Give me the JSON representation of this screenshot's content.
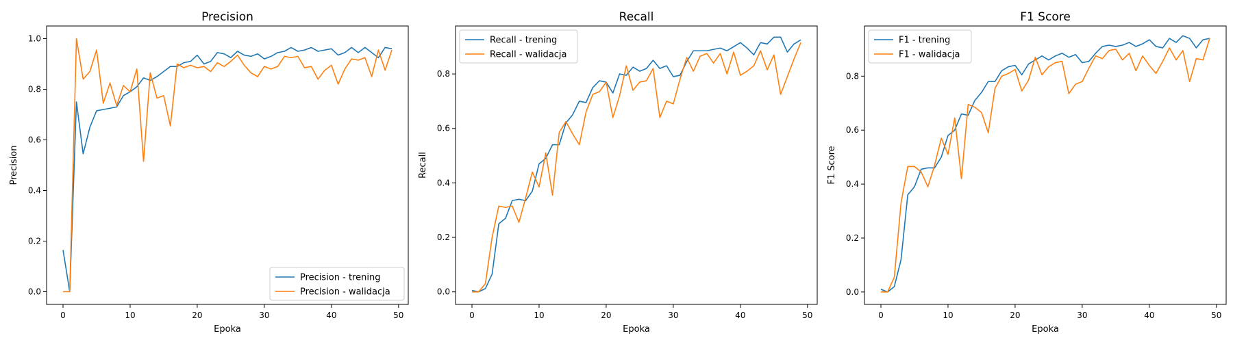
{
  "colors": {
    "trening": "#1f77b4",
    "walidacja": "#ff7f0e"
  },
  "chart_data": [
    {
      "type": "line",
      "title": "Precision",
      "xlabel": "Epoka",
      "ylabel": "Precision",
      "xlim": [
        -2.45,
        51.45
      ],
      "ylim": [
        -0.05,
        1.05
      ],
      "xticks": [
        0,
        10,
        20,
        30,
        40,
        50
      ],
      "yticks": [
        0.0,
        0.2,
        0.4,
        0.6,
        0.8,
        1.0
      ],
      "ytick_labels": [
        "0.0",
        "0.2",
        "0.4",
        "0.6",
        "0.8",
        "1.0"
      ],
      "legend_loc": "lower-right",
      "series": [
        {
          "name": "Precision - trening",
          "color": "#1f77b4",
          "values": [
            0.165,
            0.0,
            0.75,
            0.545,
            0.65,
            0.715,
            0.72,
            0.725,
            0.73,
            0.775,
            0.79,
            0.81,
            0.845,
            0.835,
            0.85,
            0.87,
            0.89,
            0.89,
            0.905,
            0.91,
            0.935,
            0.9,
            0.91,
            0.945,
            0.94,
            0.925,
            0.95,
            0.935,
            0.93,
            0.94,
            0.92,
            0.93,
            0.945,
            0.95,
            0.965,
            0.95,
            0.955,
            0.965,
            0.95,
            0.955,
            0.96,
            0.935,
            0.945,
            0.965,
            0.945,
            0.965,
            0.945,
            0.925,
            0.965,
            0.96
          ]
        },
        {
          "name": "Precision - walidacja",
          "color": "#ff7f0e",
          "values": [
            0.0,
            0.0,
            1.0,
            0.84,
            0.87,
            0.955,
            0.745,
            0.825,
            0.735,
            0.815,
            0.79,
            0.88,
            0.515,
            0.865,
            0.765,
            0.775,
            0.655,
            0.9,
            0.885,
            0.895,
            0.885,
            0.89,
            0.87,
            0.905,
            0.89,
            0.91,
            0.935,
            0.895,
            0.865,
            0.85,
            0.89,
            0.88,
            0.89,
            0.93,
            0.925,
            0.93,
            0.885,
            0.89,
            0.84,
            0.875,
            0.895,
            0.82,
            0.88,
            0.92,
            0.915,
            0.925,
            0.85,
            0.955,
            0.875,
            0.955
          ]
        }
      ]
    },
    {
      "type": "line",
      "title": "Recall",
      "xlabel": "Epoka",
      "ylabel": "Recall",
      "xlim": [
        -2.45,
        51.45
      ],
      "ylim": [
        -0.046,
        0.976
      ],
      "xticks": [
        0,
        10,
        20,
        30,
        40,
        50
      ],
      "yticks": [
        0.0,
        0.2,
        0.4,
        0.6,
        0.8
      ],
      "ytick_labels": [
        "0.0",
        "0.2",
        "0.4",
        "0.6",
        "0.8"
      ],
      "legend_loc": "top-left",
      "series": [
        {
          "name": "Recall - trening",
          "color": "#1f77b4",
          "values": [
            0.005,
            0.0,
            0.012,
            0.065,
            0.25,
            0.27,
            0.335,
            0.34,
            0.335,
            0.37,
            0.47,
            0.49,
            0.54,
            0.54,
            0.62,
            0.65,
            0.7,
            0.695,
            0.75,
            0.775,
            0.77,
            0.73,
            0.8,
            0.795,
            0.825,
            0.81,
            0.82,
            0.85,
            0.82,
            0.83,
            0.79,
            0.795,
            0.845,
            0.885,
            0.885,
            0.885,
            0.89,
            0.895,
            0.885,
            0.9,
            0.915,
            0.895,
            0.87,
            0.915,
            0.91,
            0.935,
            0.935,
            0.88,
            0.91,
            0.925
          ]
        },
        {
          "name": "Recall - walidacja",
          "color": "#ff7f0e",
          "values": [
            0.0,
            0.0,
            0.03,
            0.2,
            0.315,
            0.31,
            0.315,
            0.255,
            0.345,
            0.44,
            0.385,
            0.51,
            0.355,
            0.585,
            0.625,
            0.58,
            0.54,
            0.66,
            0.725,
            0.735,
            0.77,
            0.64,
            0.72,
            0.83,
            0.74,
            0.77,
            0.775,
            0.82,
            0.64,
            0.7,
            0.69,
            0.78,
            0.86,
            0.81,
            0.865,
            0.875,
            0.84,
            0.875,
            0.8,
            0.88,
            0.795,
            0.81,
            0.83,
            0.885,
            0.815,
            0.87,
            0.725,
            0.79,
            0.855,
            0.915
          ]
        }
      ]
    },
    {
      "type": "line",
      "title": "F1 Score",
      "xlabel": "Epoka",
      "ylabel": "F1 Score",
      "xlim": [
        -2.45,
        51.45
      ],
      "ylim": [
        -0.046,
        0.986
      ],
      "xticks": [
        0,
        10,
        20,
        30,
        40,
        50
      ],
      "yticks": [
        0.0,
        0.2,
        0.4,
        0.6,
        0.8
      ],
      "ytick_labels": [
        "0.0",
        "0.2",
        "0.4",
        "0.6",
        "0.8"
      ],
      "legend_loc": "top-left",
      "series": [
        {
          "name": "F1 - trening",
          "color": "#1f77b4",
          "values": [
            0.01,
            0.0,
            0.02,
            0.12,
            0.36,
            0.39,
            0.455,
            0.46,
            0.46,
            0.5,
            0.58,
            0.6,
            0.66,
            0.655,
            0.71,
            0.74,
            0.78,
            0.78,
            0.82,
            0.835,
            0.84,
            0.805,
            0.845,
            0.86,
            0.875,
            0.86,
            0.875,
            0.885,
            0.87,
            0.88,
            0.85,
            0.855,
            0.885,
            0.91,
            0.915,
            0.91,
            0.915,
            0.925,
            0.91,
            0.92,
            0.935,
            0.91,
            0.905,
            0.94,
            0.925,
            0.95,
            0.94,
            0.905,
            0.935,
            0.94
          ]
        },
        {
          "name": "F1 - walidacja",
          "color": "#ff7f0e",
          "values": [
            0.0,
            0.0,
            0.055,
            0.33,
            0.465,
            0.465,
            0.445,
            0.39,
            0.47,
            0.57,
            0.51,
            0.645,
            0.42,
            0.695,
            0.685,
            0.665,
            0.59,
            0.755,
            0.8,
            0.81,
            0.825,
            0.745,
            0.785,
            0.87,
            0.805,
            0.835,
            0.85,
            0.855,
            0.735,
            0.77,
            0.78,
            0.83,
            0.875,
            0.865,
            0.895,
            0.9,
            0.86,
            0.885,
            0.82,
            0.875,
            0.84,
            0.81,
            0.855,
            0.905,
            0.86,
            0.895,
            0.78,
            0.865,
            0.86,
            0.94
          ]
        }
      ]
    }
  ]
}
